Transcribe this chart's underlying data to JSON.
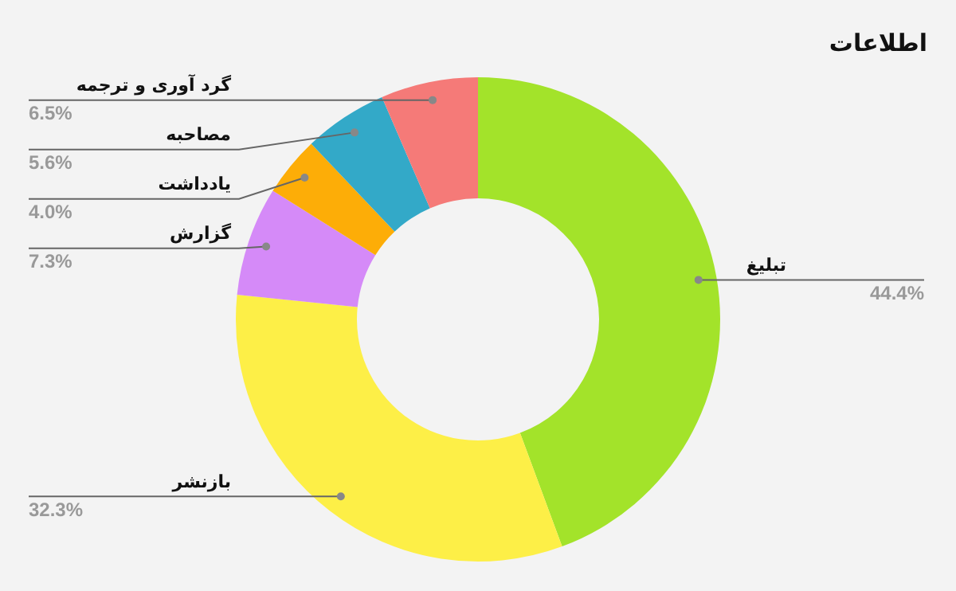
{
  "chart_data": {
    "type": "donut",
    "title": "اطلاعات",
    "categories": [
      "تبلیغ",
      "بازنشر",
      "گزارش",
      "یادداشت",
      "مصاحبه",
      "گرد آوری و ترجمه"
    ],
    "values": [
      44.4,
      32.3,
      7.3,
      4.0,
      5.6,
      6.5
    ],
    "colors": [
      "#a3e32a",
      "#fdef47",
      "#d58af8",
      "#fdad07",
      "#33a9c8",
      "#f57a78"
    ],
    "value_labels": [
      "44.4%",
      "32.3%",
      "7.3%",
      "4.0%",
      "5.6%",
      "6.5%"
    ],
    "legend": false
  }
}
